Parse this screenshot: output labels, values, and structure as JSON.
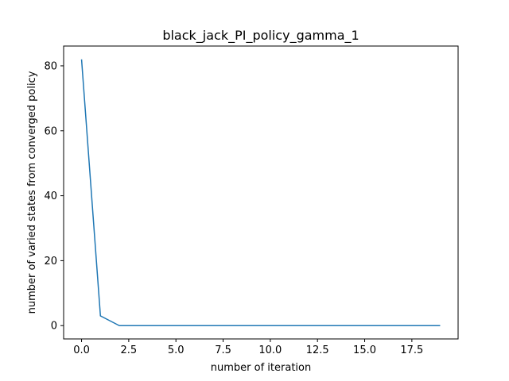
{
  "chart_data": {
    "type": "line",
    "title": "black_jack_PI_policy_gamma_1",
    "xlabel": "number of iteration",
    "ylabel": "number of varied states from converged policy",
    "xlim": [
      -0.95,
      19.95
    ],
    "ylim": [
      -4.1,
      86.1
    ],
    "x_ticks": [
      0.0,
      2.5,
      5.0,
      7.5,
      10.0,
      12.5,
      15.0,
      17.5
    ],
    "x_tick_labels": [
      "0.0",
      "2.5",
      "5.0",
      "7.5",
      "10.0",
      "12.5",
      "15.0",
      "17.5"
    ],
    "y_ticks": [
      0,
      20,
      40,
      60,
      80
    ],
    "y_tick_labels": [
      "0",
      "20",
      "40",
      "60",
      "80"
    ],
    "grid": false,
    "legend": "none",
    "line_color": "#1f77b4",
    "series": [
      {
        "x": [
          0,
          1,
          2,
          3,
          4,
          5,
          6,
          7,
          8,
          9,
          10,
          11,
          12,
          13,
          14,
          15,
          16,
          17,
          18,
          19
        ],
        "values": [
          82,
          3,
          0,
          0,
          0,
          0,
          0,
          0,
          0,
          0,
          0,
          0,
          0,
          0,
          0,
          0,
          0,
          0,
          0,
          0
        ]
      }
    ]
  }
}
